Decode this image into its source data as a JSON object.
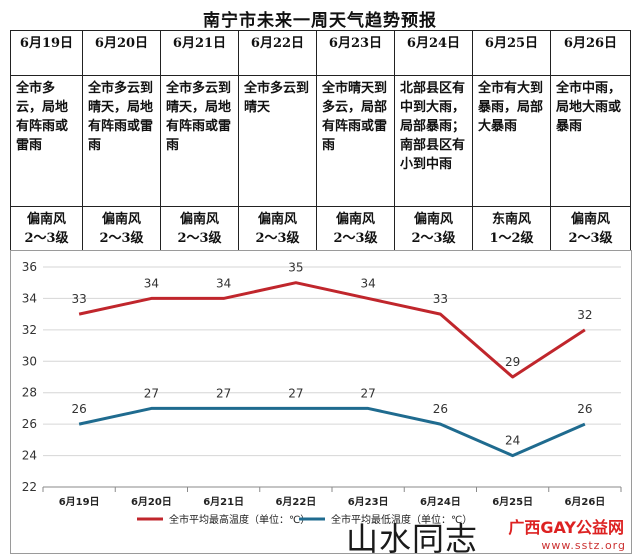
{
  "title": "南宁市未来一周天气趋势预报",
  "days": [
    {
      "date": "6月19日",
      "weather": "全市多云，局地有阵雨或雷雨",
      "wind_dir": "偏南风",
      "wind_level": "2～3级"
    },
    {
      "date": "6月20日",
      "weather": "全市多云到晴天，局地有阵雨或雷雨",
      "wind_dir": "偏南风",
      "wind_level": "2～3级"
    },
    {
      "date": "6月21日",
      "weather": "全市多云到晴天，局地有阵雨或雷雨",
      "wind_dir": "偏南风",
      "wind_level": "2～3级"
    },
    {
      "date": "6月22日",
      "weather": "全市多云到晴天",
      "wind_dir": "偏南风",
      "wind_level": "2～3级"
    },
    {
      "date": "6月23日",
      "weather": "全市晴天到多云，局部有阵雨或雷雨",
      "wind_dir": "偏南风",
      "wind_level": "2～3级"
    },
    {
      "date": "6月24日",
      "weather": "北部县区有中到大雨，局部暴雨；南部县区有小到中雨",
      "wind_dir": "偏南风",
      "wind_level": "2～3级"
    },
    {
      "date": "6月25日",
      "weather": "全市有大到暴雨，局部大暴雨",
      "wind_dir": "东南风",
      "wind_level": "1～2级"
    },
    {
      "date": "6月26日",
      "weather": "全市中雨，局地大雨或暴雨",
      "wind_dir": "偏南风",
      "wind_level": "2～3级"
    }
  ],
  "chart_data": {
    "type": "line",
    "categories": [
      "6月19日",
      "6月20日",
      "6月21日",
      "6月22日",
      "6月23日",
      "6月24日",
      "6月25日",
      "6月26日"
    ],
    "series": [
      {
        "name": "全市平均最高温度（单位：℃）",
        "values": [
          33,
          34,
          34,
          35,
          34,
          33,
          29,
          32
        ],
        "color": "#c0262c"
      },
      {
        "name": "全市平均最低温度（单位：℃）",
        "values": [
          26,
          27,
          27,
          27,
          27,
          26,
          24,
          26
        ],
        "color": "#1f6b8f"
      }
    ],
    "ylim": [
      22,
      36
    ],
    "yticks": [
      22,
      24,
      26,
      28,
      30,
      32,
      34,
      36
    ],
    "grid": true,
    "legend": "bottom"
  },
  "watermark": {
    "main": "山水同志",
    "site": "广西GAY公益网",
    "url": "www.sstz.org"
  },
  "colors": {
    "high": "#c0262c",
    "low": "#1f6b8f",
    "grid": "#d6d6d6"
  }
}
